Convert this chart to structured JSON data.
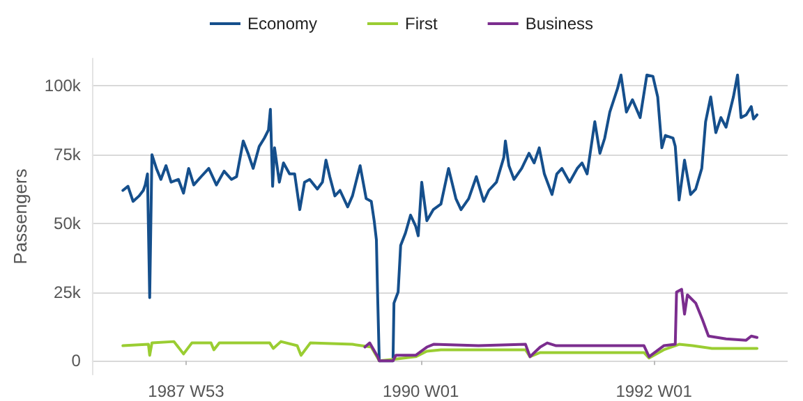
{
  "chart_data": {
    "type": "line",
    "ylabel": "Passengers",
    "legend": "top",
    "grid": "y",
    "xlim": [
      "1987-03-08",
      "1993-02-23"
    ],
    "xticks": [
      {
        "value": "1987-12-28",
        "label": "1987 W53"
      },
      {
        "value": "1990-01-01",
        "label": "1990 W01"
      },
      {
        "value": "1992-01-01",
        "label": "1992 W01"
      }
    ],
    "ylim": [
      -5000,
      110000
    ],
    "yticks": [
      0,
      {
        "value": 25000,
        "label": "25k"
      },
      {
        "value": 50000,
        "label": "50k"
      },
      {
        "value": 75000,
        "label": "75k"
      },
      {
        "value": 100000,
        "label": "100k"
      }
    ],
    "series": [
      {
        "name": "Economy",
        "color": "#154f8c",
        "x": [
          "1987-06-13",
          "1987-06-29",
          "1987-07-15",
          "1987-08-03",
          "1987-08-16",
          "1987-08-22",
          "1987-08-29",
          "1987-09-05",
          "1987-09-12",
          "1987-09-26",
          "1987-10-10",
          "1987-10-26",
          "1987-11-11",
          "1987-12-04",
          "1987-12-20",
          "1988-01-05",
          "1988-01-21",
          "1988-02-13",
          "1988-03-08",
          "1988-04-01",
          "1988-04-25",
          "1988-05-18",
          "1988-06-03",
          "1988-06-24",
          "1988-07-09",
          "1988-07-25",
          "1988-08-13",
          "1988-08-29",
          "1988-09-11",
          "1988-09-17",
          "1988-09-24",
          "1988-09-30",
          "1988-10-15",
          "1988-10-28",
          "1988-11-16",
          "1988-12-02",
          "1988-12-18",
          "1989-01-02",
          "1989-01-18",
          "1989-02-11",
          "1989-02-27",
          "1989-03-10",
          "1989-03-22",
          "1989-04-07",
          "1989-04-23",
          "1989-05-17",
          "1989-06-01",
          "1989-06-25",
          "1989-07-14",
          "1989-07-30",
          "1989-08-08",
          "1989-08-15",
          "1989-08-19",
          "1989-08-24",
          "1989-10-06",
          "1989-10-09",
          "1989-10-22",
          "1989-10-30",
          "1989-11-14",
          "1989-11-30",
          "1989-12-16",
          "1989-12-24",
          "1990-01-04",
          "1990-01-20",
          "1990-02-09",
          "1990-03-05",
          "1990-03-29",
          "1990-04-21",
          "1990-05-07",
          "1990-05-31",
          "1990-06-24",
          "1990-07-17",
          "1990-08-02",
          "1990-08-26",
          "1990-09-18",
          "1990-09-23",
          "1990-10-04",
          "1990-10-20",
          "1990-11-13",
          "1990-12-06",
          "1990-12-22",
          "1991-01-07",
          "1991-01-23",
          "1991-02-16",
          "1991-03-03",
          "1991-03-19",
          "1991-04-12",
          "1991-05-06",
          "1991-05-21",
          "1991-06-06",
          "1991-06-30",
          "1991-07-16",
          "1991-07-31",
          "1991-08-16",
          "1991-09-09",
          "1991-09-20",
          "1991-10-07",
          "1991-10-26",
          "1991-11-19",
          "1991-12-10",
          "1991-12-29",
          "1992-01-13",
          "1992-01-26",
          "1992-02-06",
          "1992-03-01",
          "1992-03-08",
          "1992-03-20",
          "1992-04-06",
          "1992-04-25",
          "1992-05-11",
          "1992-05-30",
          "1992-06-11",
          "1992-06-27",
          "1992-07-13",
          "1992-07-29",
          "1992-08-14",
          "1992-09-06",
          "1992-09-19",
          "1992-09-30",
          "1992-10-16",
          "1992-11-01",
          "1992-11-08",
          "1992-11-19"
        ],
        "values": [
          62000,
          63500,
          58000,
          60000,
          62000,
          64000,
          68000,
          23000,
          75000,
          70000,
          66000,
          71000,
          65000,
          66000,
          61000,
          70000,
          64000,
          67000,
          70000,
          64000,
          69000,
          66000,
          67000,
          80000,
          75500,
          70000,
          78000,
          81000,
          84000,
          91500,
          63500,
          77500,
          65000,
          72000,
          68000,
          68000,
          55000,
          65000,
          66000,
          62500,
          65000,
          73000,
          67000,
          60000,
          62000,
          56000,
          60000,
          71000,
          59000,
          58000,
          51000,
          44000,
          23000,
          0,
          0,
          21000,
          25000,
          42000,
          46500,
          53000,
          49000,
          45500,
          65000,
          51000,
          55000,
          57000,
          70000,
          59000,
          55000,
          59000,
          67000,
          58000,
          62000,
          65000,
          74000,
          80000,
          71000,
          66000,
          70000,
          75500,
          72000,
          77500,
          68000,
          60500,
          68000,
          70000,
          65000,
          70000,
          72000,
          68000,
          87000,
          75500,
          81000,
          90500,
          99000,
          104000,
          90500,
          95000,
          88500,
          104000,
          103500,
          96000,
          77500,
          82000,
          81000,
          78000,
          58500,
          73000,
          60500,
          62500,
          70000,
          87000,
          96000,
          83000,
          88500,
          85000,
          96000,
          104000,
          88500,
          89500,
          92500,
          88000,
          89500
        ]
      },
      {
        "name": "First",
        "color": "#9acd32",
        "x": [
          "1987-06-13",
          "1987-09-01",
          "1987-09-05",
          "1987-09-12",
          "1987-11-20",
          "1987-12-20",
          "1988-01-15",
          "1988-03-15",
          "1988-03-24",
          "1988-04-10",
          "1988-09-15",
          "1988-09-26",
          "1988-10-20",
          "1988-12-10",
          "1988-12-22",
          "1989-01-20",
          "1989-06-01",
          "1989-07-30",
          "1989-08-19",
          "1989-08-24",
          "1989-10-06",
          "1989-12-16",
          "1990-01-20",
          "1990-03-05",
          "1990-09-01",
          "1990-11-25",
          "1990-12-09",
          "1991-01-10",
          "1991-12-01",
          "1991-12-17",
          "1992-02-01",
          "1992-03-20",
          "1992-05-01",
          "1992-07-01",
          "1992-11-19"
        ],
        "values": [
          5500,
          6000,
          2000,
          6500,
          7000,
          2500,
          6500,
          6500,
          4000,
          6500,
          6500,
          4500,
          7000,
          5500,
          2000,
          6500,
          6000,
          5000,
          1000,
          0,
          500,
          1500,
          3500,
          4000,
          4000,
          4000,
          1500,
          3000,
          3000,
          1000,
          4000,
          6000,
          5500,
          4500,
          4500
        ]
      },
      {
        "name": "Business",
        "color": "#7b2d8e",
        "x": [
          "1989-07-10",
          "1989-07-25",
          "1989-08-19",
          "1989-08-24",
          "1989-10-06",
          "1989-10-15",
          "1989-12-16",
          "1990-01-20",
          "1990-02-10",
          "1990-07-01",
          "1990-11-25",
          "1990-12-09",
          "1991-01-10",
          "1991-02-01",
          "1991-03-01",
          "1991-12-01",
          "1991-12-17",
          "1992-02-01",
          "1992-03-08",
          "1992-03-12",
          "1992-03-28",
          "1992-04-06",
          "1992-04-15",
          "1992-05-11",
          "1992-06-01",
          "1992-06-20",
          "1992-08-14",
          "1992-10-16",
          "1992-11-01",
          "1992-11-19"
        ],
        "values": [
          5000,
          6500,
          1500,
          0,
          0,
          2000,
          2000,
          5000,
          6000,
          5500,
          6000,
          1500,
          5000,
          6500,
          5500,
          5500,
          1500,
          5500,
          6000,
          25000,
          26000,
          17000,
          24000,
          21000,
          15000,
          9000,
          8000,
          7500,
          9000,
          8500
        ]
      }
    ]
  }
}
